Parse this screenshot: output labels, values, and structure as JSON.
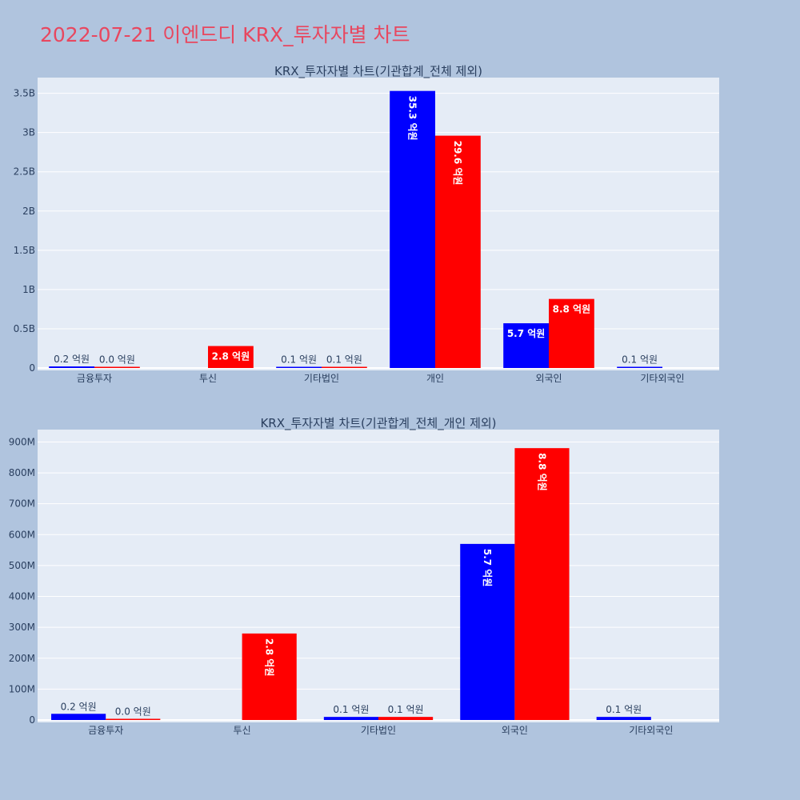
{
  "page": {
    "title": "2022-07-21 이엔드디 KRX_투자자별 차트",
    "title_color": "#e8475f",
    "background": "#b0c4de",
    "plot_background": "#e5ecf6"
  },
  "chart_data": [
    {
      "type": "bar",
      "title": "KRX_투자자별 차트(기관합계_전체 제외)",
      "categories": [
        "금융투자",
        "투신",
        "기타법인",
        "개인",
        "외국인",
        "기타외국인"
      ],
      "ylim": [
        0,
        3700000000
      ],
      "yticks": [
        0,
        500000000,
        1000000000,
        1500000000,
        2000000000,
        2500000000,
        3000000000,
        3500000000
      ],
      "ytick_labels": [
        "0",
        "0.5B",
        "1B",
        "1.5B",
        "2B",
        "2.5B",
        "3B",
        "3.5B"
      ],
      "series": [
        {
          "color": "#0000ff",
          "values": [
            20000000,
            null,
            10000000,
            3530000000,
            570000000,
            10000000
          ],
          "labels": [
            "0.2 억원",
            "",
            "0.1 억원",
            "35.3 억원",
            "5.7 억원",
            "0.1 억원"
          ]
        },
        {
          "color": "#ff0000",
          "values": [
            1000000,
            280000000,
            10000000,
            2960000000,
            880000000,
            null
          ],
          "labels": [
            "0.0 억원",
            "2.8 억원",
            "0.1 억원",
            "29.6 억원",
            "8.8 억원",
            ""
          ]
        }
      ],
      "grid": true,
      "legend": "none"
    },
    {
      "type": "bar",
      "title": "KRX_투자자별 차트(기관합계_전체_개인 제외)",
      "categories": [
        "금융투자",
        "투신",
        "기타법인",
        "외국인",
        "기타외국인"
      ],
      "ylim": [
        0,
        940000000
      ],
      "yticks": [
        0,
        100000000,
        200000000,
        300000000,
        400000000,
        500000000,
        600000000,
        700000000,
        800000000,
        900000000
      ],
      "ytick_labels": [
        "0",
        "100M",
        "200M",
        "300M",
        "400M",
        "500M",
        "600M",
        "700M",
        "800M",
        "900M"
      ],
      "series": [
        {
          "color": "#0000ff",
          "values": [
            20000000,
            null,
            10000000,
            570000000,
            10000000
          ],
          "labels": [
            "0.2 억원",
            "",
            "0.1 억원",
            "5.7 억원",
            "0.1 억원"
          ]
        },
        {
          "color": "#ff0000",
          "values": [
            1000000,
            280000000,
            10000000,
            880000000,
            null
          ],
          "labels": [
            "0.0 억원",
            "2.8 억원",
            "0.1 억원",
            "8.8 억원",
            ""
          ]
        }
      ],
      "grid": true,
      "legend": "none"
    }
  ]
}
